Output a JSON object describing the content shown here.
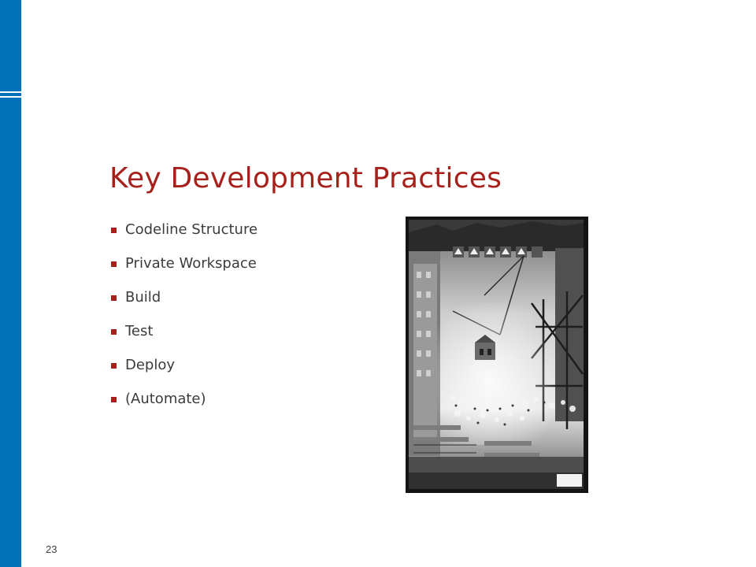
{
  "slide": {
    "title": "Key Development Practices",
    "bullets": [
      "Codeline Structure",
      "Private Workspace",
      "Build",
      "Test",
      "Deploy",
      "(Automate)"
    ],
    "page_number": "23",
    "image": {
      "subject": "construction-site-photo",
      "style": "black-and-white overhead photograph"
    }
  },
  "colors": {
    "accent_blue": "#0070b8",
    "title_red": "#a7211c",
    "bullet_text": "#3b3b3b",
    "background": "#ffffff"
  }
}
